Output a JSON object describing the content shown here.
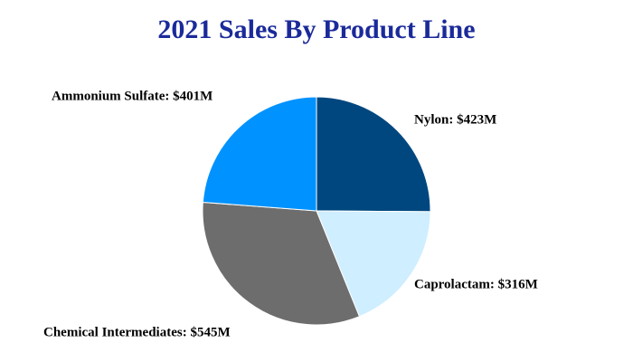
{
  "chart_data": {
    "type": "pie",
    "title": "2021 Sales By Product Line",
    "values": [
      423,
      316,
      545,
      401
    ],
    "value_labels": [
      "Nylon: $423M",
      "Caprolactam: $316M",
      "Chemical Intermediates: $545M",
      "Ammonium Sulfate: $401M"
    ],
    "colors": [
      "#00477f",
      "#cfeeff",
      "#6d6d6d",
      "#0092ff"
    ]
  }
}
